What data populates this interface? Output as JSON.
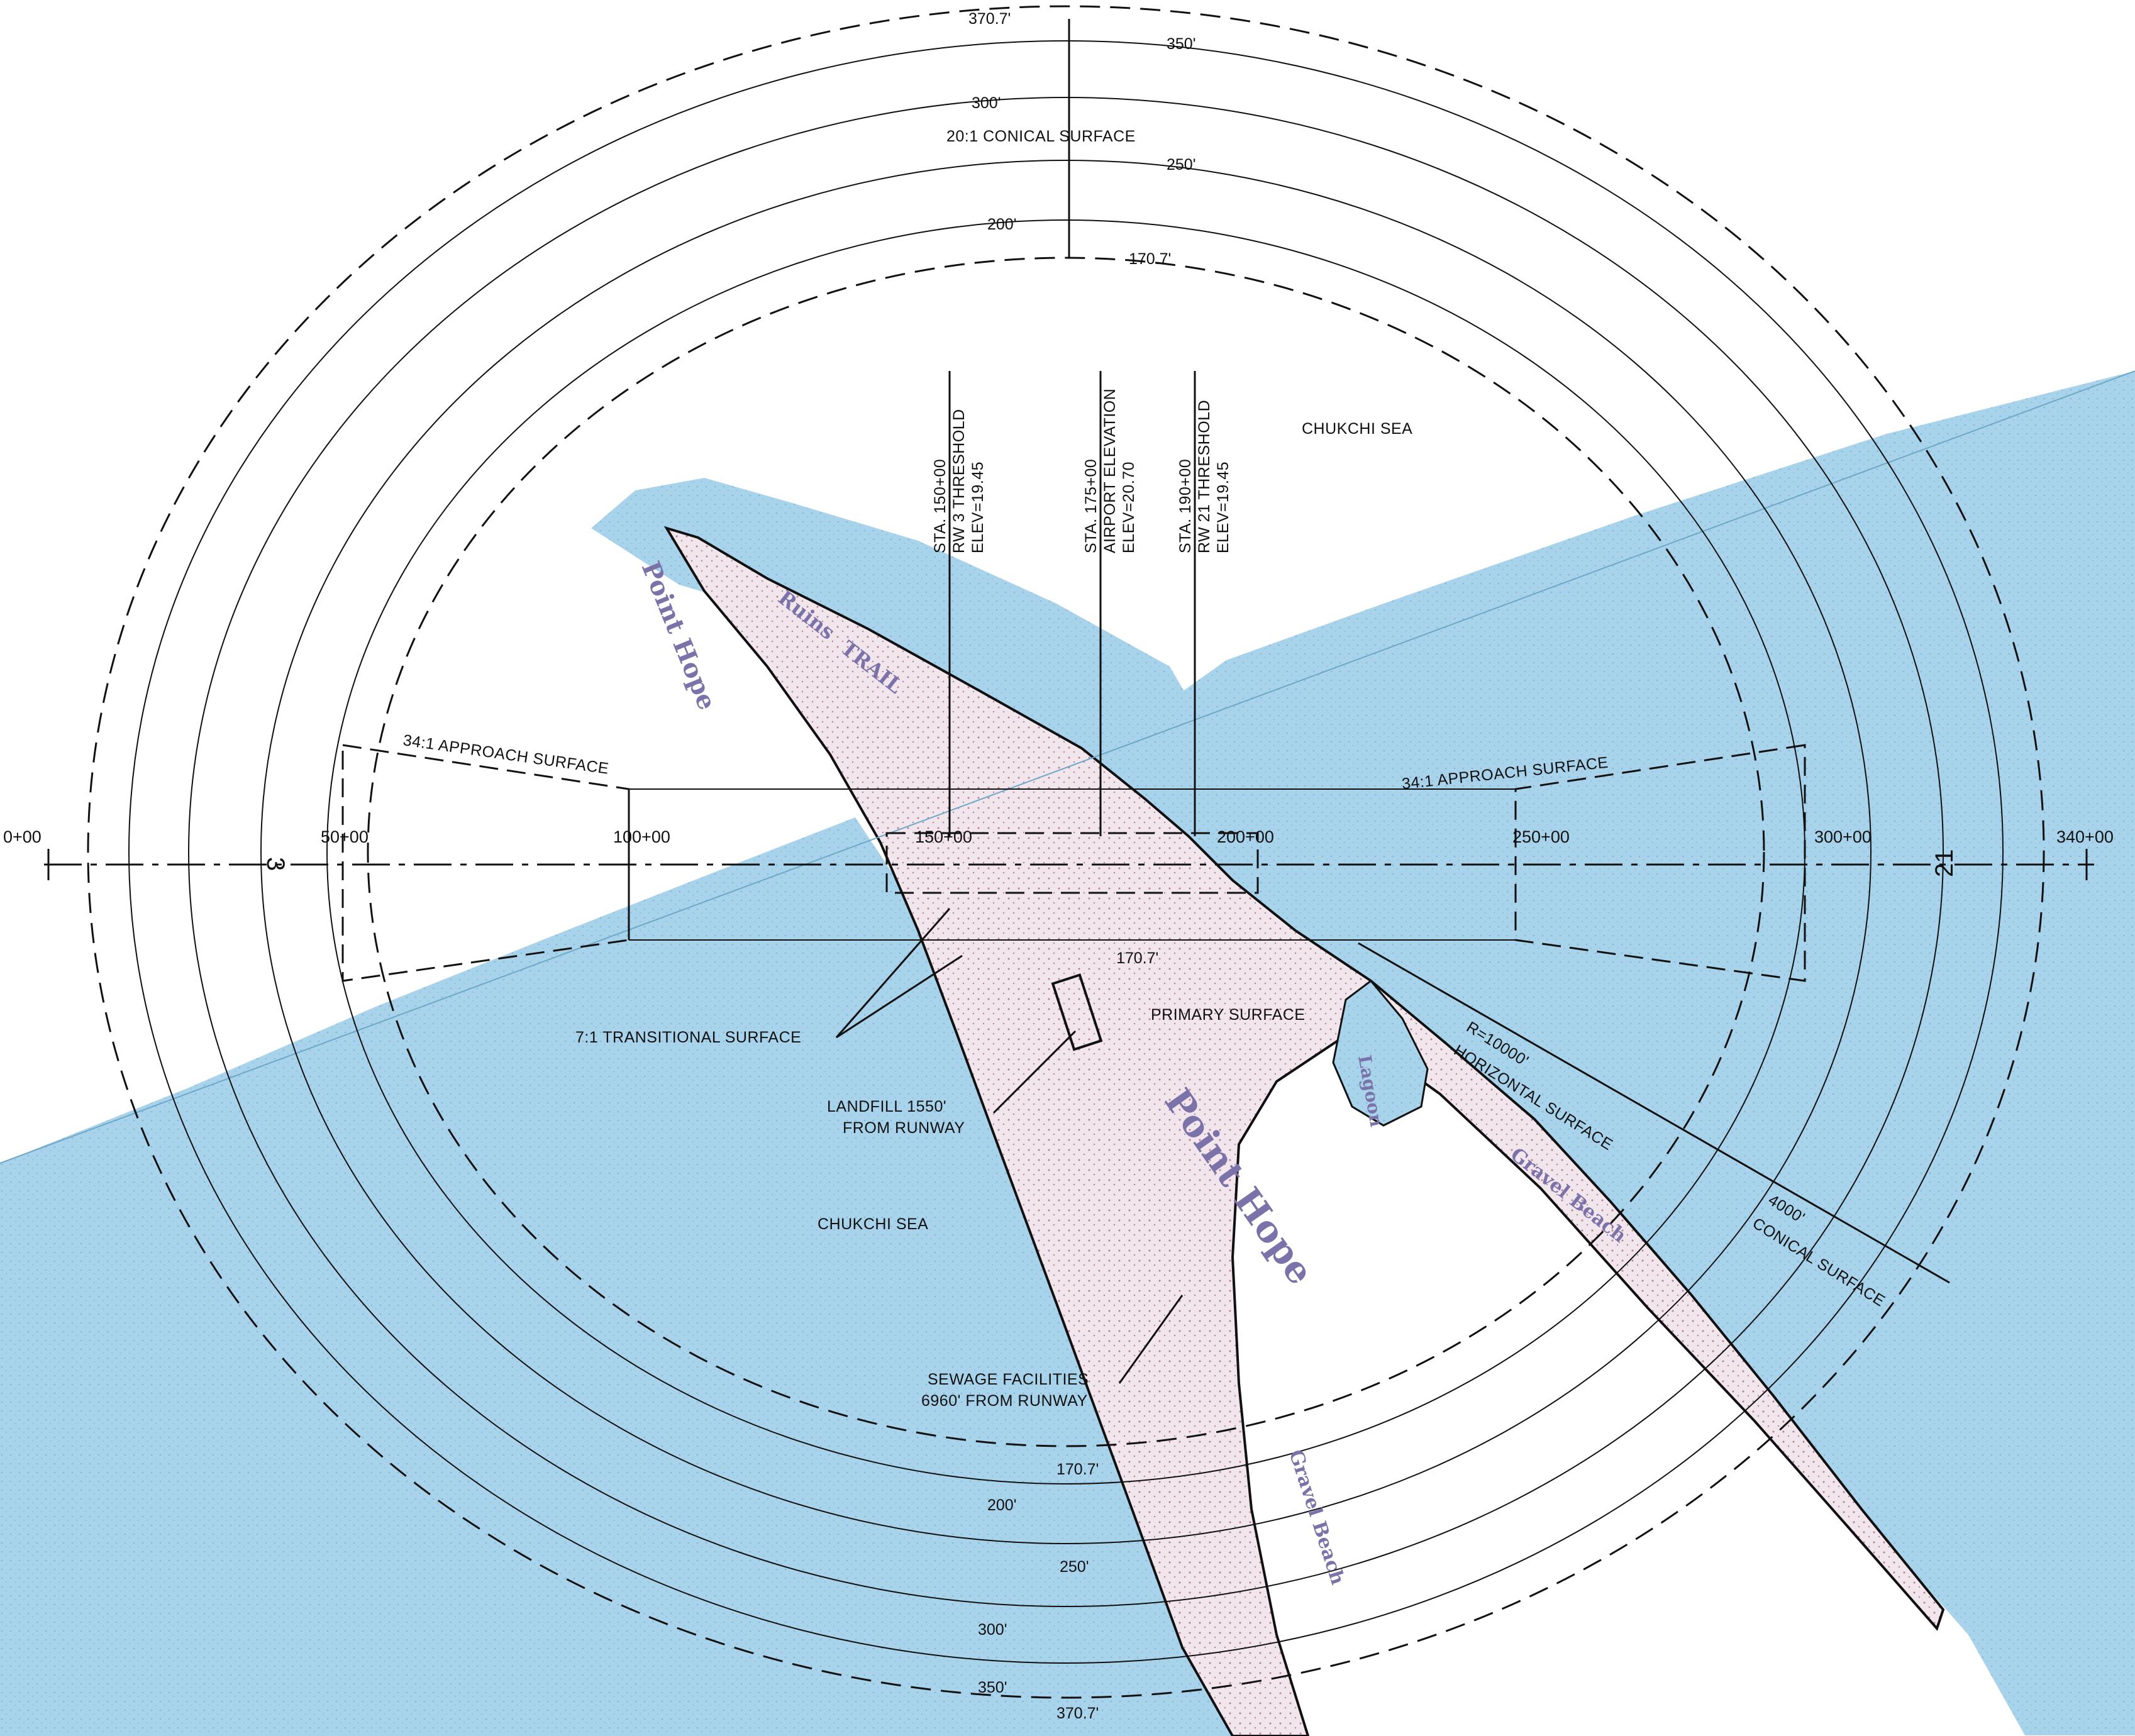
{
  "map": {
    "water_labels": [
      "CHUKCHI SEA",
      "CHUKCHI SEA"
    ],
    "conical_surface_label": "20:1 CONICAL SURFACE",
    "elevation_contours_top": [
      "370.7'",
      "350'",
      "300'",
      "250'",
      "200'",
      "170.7'"
    ],
    "elevation_contours_bottom": [
      "170.7'",
      "200'",
      "250'",
      "300'",
      "350'",
      "370.7'"
    ],
    "primary_elev_label": "170.7'",
    "stations": [
      "0+00",
      "50+00",
      "100+00",
      "150+00",
      "200+00",
      "250+00",
      "300+00",
      "340+00"
    ],
    "runway_numbers": [
      "3",
      "21"
    ],
    "approach_surface_left": "34:1 APPROACH SURFACE",
    "approach_surface_right": "34:1 APPROACH SURFACE",
    "threshold_3": [
      "STA. 150+00",
      "RW 3 THRESHOLD",
      "ELEV=19.45"
    ],
    "airport_elev": [
      "STA. 175+00",
      "AIRPORT ELEVATION",
      "ELEV=20.70"
    ],
    "threshold_21": [
      "STA. 190+00",
      "RW 21 THRESHOLD",
      "ELEV=19.45"
    ],
    "transitional_surface": "7:1 TRANSITIONAL SURFACE",
    "primary_surface": "PRIMARY SURFACE",
    "landfill": [
      "LANDFILL 1550'",
      "FROM RUNWAY"
    ],
    "sewage": [
      "SEWAGE FACILITIES",
      "6960' FROM RUNWAY"
    ],
    "horizontal_surface": [
      "R=10000'",
      "HORIZONTAL SURFACE"
    ],
    "conical_width": [
      "4000'",
      "CONICAL SURFACE"
    ],
    "place_names": [
      "Point Hope",
      "Point Hope",
      "Ruins",
      "TRAIL",
      "Gravel Beach",
      "Gravel Beach",
      "Lagoon"
    ],
    "colors": {
      "water": "#a9d3ea",
      "land": "#efe4ea",
      "stipple": "#c07a98",
      "line": "#111111",
      "place": "#7a72a8"
    }
  }
}
